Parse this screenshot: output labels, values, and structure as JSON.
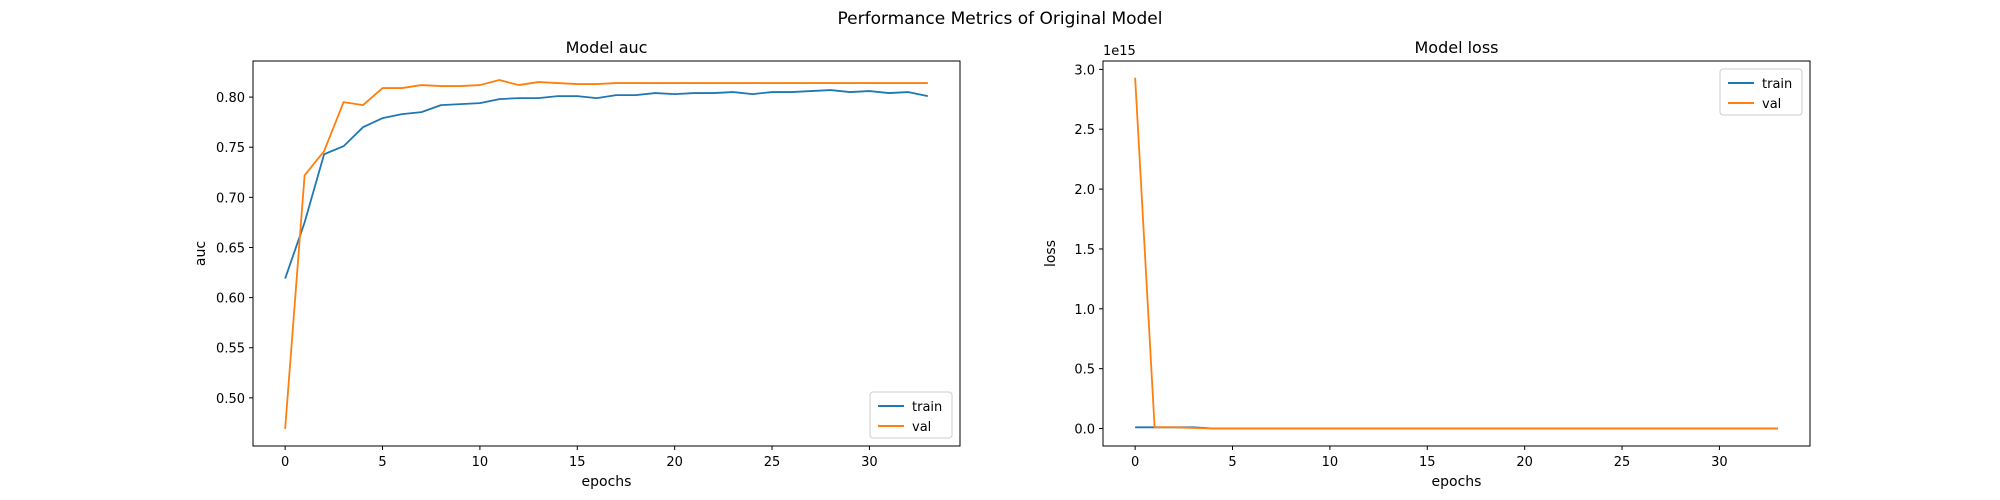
{
  "figure": {
    "suptitle": "Performance Metrics of Original Model"
  },
  "colors": {
    "train": "#1f77b4",
    "val": "#ff7f0e"
  },
  "chart_data": [
    {
      "type": "line",
      "title": "Model auc",
      "xlabel": "epochs",
      "ylabel": "auc",
      "xlim": [
        -1.65,
        34.65
      ],
      "ylim": [
        0.452,
        0.836
      ],
      "xticks": [
        0,
        5,
        10,
        15,
        20,
        25,
        30
      ],
      "yticks": [
        0.5,
        0.55,
        0.6,
        0.65,
        0.7,
        0.75,
        0.8
      ],
      "ytick_labels": [
        "0.50",
        "0.55",
        "0.60",
        "0.65",
        "0.70",
        "0.75",
        "0.80"
      ],
      "legend": "lower right",
      "x": [
        0,
        1,
        2,
        3,
        4,
        5,
        6,
        7,
        8,
        9,
        10,
        11,
        12,
        13,
        14,
        15,
        16,
        17,
        18,
        19,
        20,
        21,
        22,
        23,
        24,
        25,
        26,
        27,
        28,
        29,
        30,
        31,
        32,
        33
      ],
      "series": [
        {
          "name": "train",
          "values": [
            0.619,
            0.675,
            0.743,
            0.751,
            0.77,
            0.779,
            0.783,
            0.785,
            0.792,
            0.793,
            0.794,
            0.798,
            0.799,
            0.799,
            0.801,
            0.801,
            0.799,
            0.802,
            0.802,
            0.804,
            0.803,
            0.804,
            0.804,
            0.805,
            0.803,
            0.805,
            0.805,
            0.806,
            0.807,
            0.805,
            0.806,
            0.804,
            0.805,
            0.801
          ]
        },
        {
          "name": "val",
          "values": [
            0.469,
            0.722,
            0.746,
            0.795,
            0.792,
            0.809,
            0.809,
            0.812,
            0.811,
            0.811,
            0.812,
            0.817,
            0.812,
            0.815,
            0.814,
            0.813,
            0.813,
            0.814,
            0.814,
            0.814,
            0.814,
            0.814,
            0.814,
            0.814,
            0.814,
            0.814,
            0.814,
            0.814,
            0.814,
            0.814,
            0.814,
            0.814,
            0.814,
            0.814
          ]
        }
      ]
    },
    {
      "type": "line",
      "title": "Model loss",
      "xlabel": "epochs",
      "ylabel": "loss",
      "y_offset_label": "1e15",
      "xlim": [
        -1.65,
        34.65
      ],
      "ylim": [
        -0.146,
        3.07
      ],
      "xticks": [
        0,
        5,
        10,
        15,
        20,
        25,
        30
      ],
      "yticks": [
        0.0,
        0.5,
        1.0,
        1.5,
        2.0,
        2.5,
        3.0
      ],
      "ytick_labels": [
        "0.0",
        "0.5",
        "1.0",
        "1.5",
        "2.0",
        "2.5",
        "3.0"
      ],
      "legend": "upper right",
      "x": [
        0,
        1,
        2,
        3,
        4,
        5,
        6,
        7,
        8,
        9,
        10,
        11,
        12,
        13,
        14,
        15,
        16,
        17,
        18,
        19,
        20,
        21,
        22,
        23,
        24,
        25,
        26,
        27,
        28,
        29,
        30,
        31,
        32,
        33
      ],
      "series": [
        {
          "name": "train",
          "values": [
            0.01,
            0.01,
            0.01,
            0.01,
            0.0,
            0.0,
            0.0,
            0.0,
            0.0,
            0.0,
            0.0,
            0.0,
            0.0,
            0.0,
            0.0,
            0.0,
            0.0,
            0.0,
            0.0,
            0.0,
            0.0,
            0.0,
            0.0,
            0.0,
            0.0,
            0.0,
            0.0,
            0.0,
            0.0,
            0.0,
            0.0,
            0.0,
            0.0,
            0.0
          ]
        },
        {
          "name": "val",
          "values": [
            2.93,
            0.01,
            0.01,
            0.005,
            0.0,
            0.0,
            0.0,
            0.0,
            0.0,
            0.0,
            0.0,
            0.0,
            0.0,
            0.0,
            0.0,
            0.0,
            0.0,
            0.0,
            0.0,
            0.0,
            0.0,
            0.0,
            0.0,
            0.0,
            0.0,
            0.0,
            0.0,
            0.0,
            0.0,
            0.0,
            0.0,
            0.0,
            0.0,
            0.0
          ]
        }
      ]
    }
  ]
}
